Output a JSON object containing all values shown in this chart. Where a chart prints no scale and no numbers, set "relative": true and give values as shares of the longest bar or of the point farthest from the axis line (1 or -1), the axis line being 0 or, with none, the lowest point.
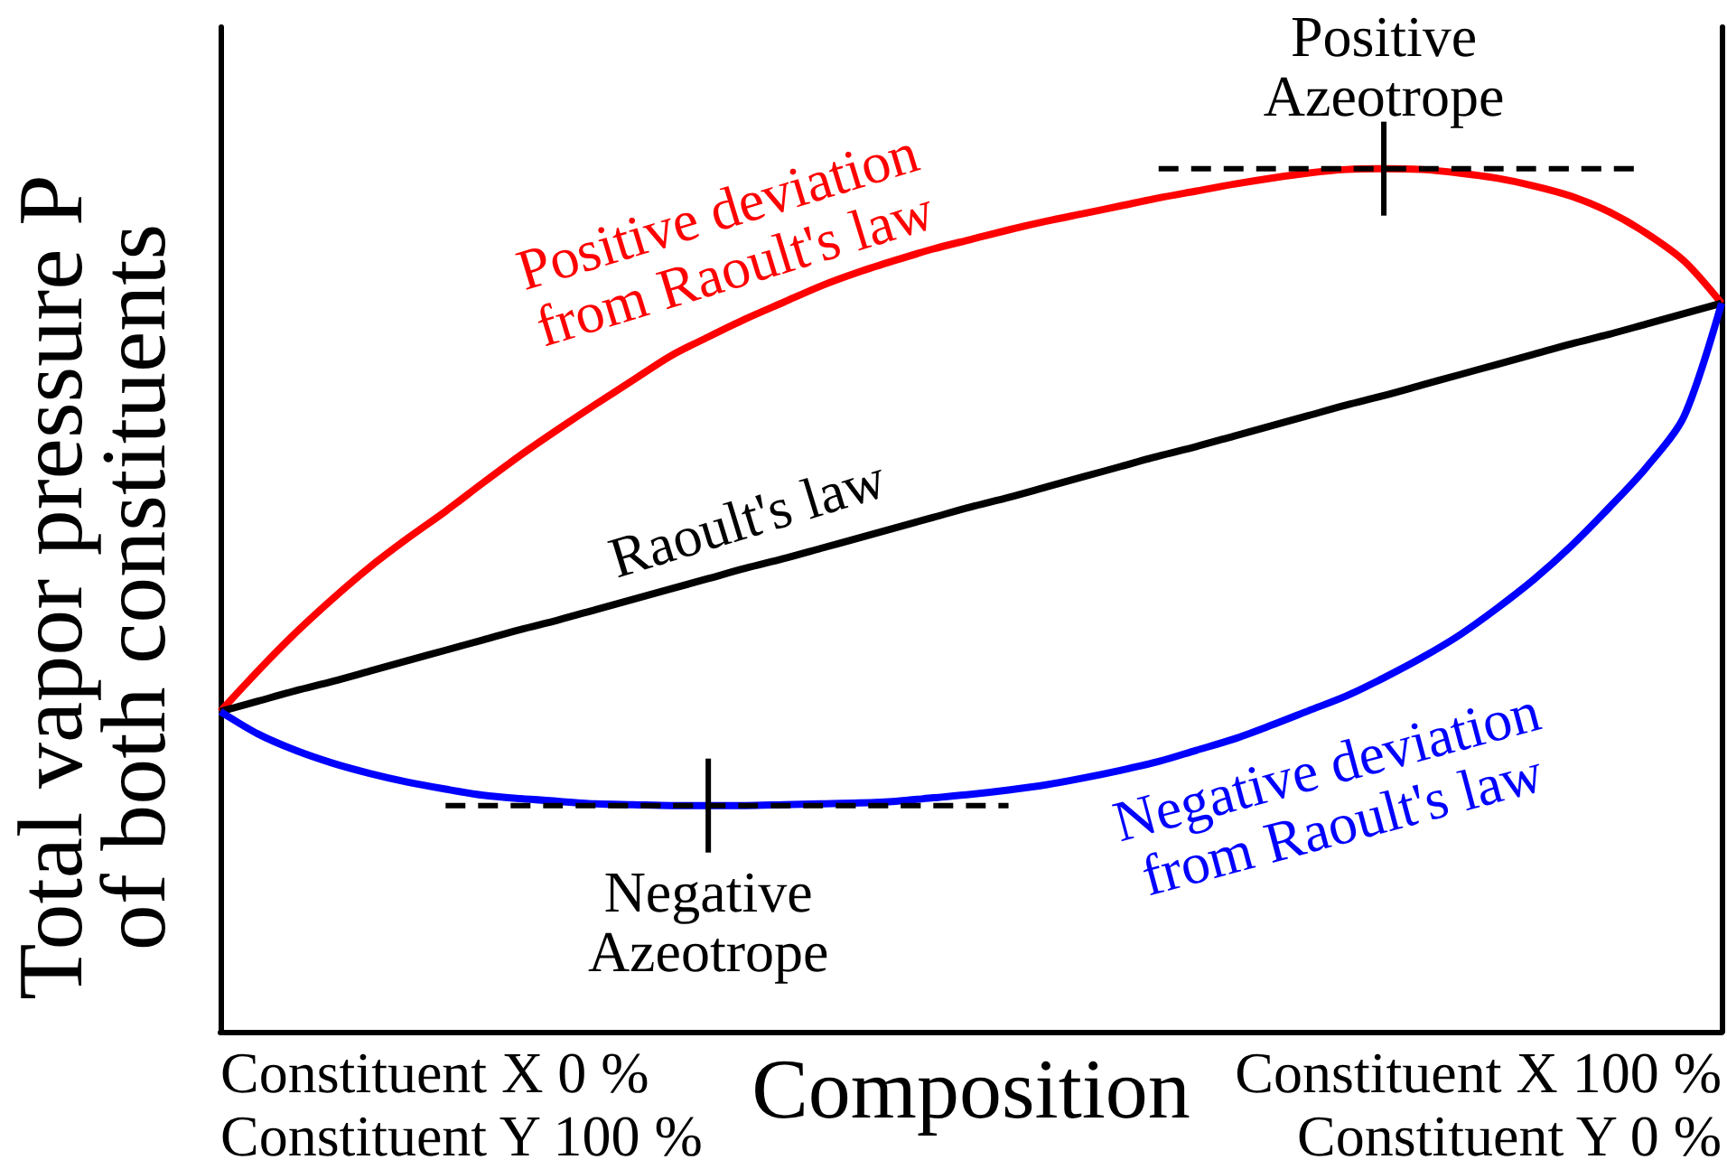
{
  "chart_data": {
    "type": "line",
    "relative": true,
    "xlabel": "Composition",
    "ylabel": "Total vapor pressure P\nof both constituents",
    "categories": [
      null,
      null,
      null,
      null,
      null,
      null,
      null,
      null,
      null,
      null,
      null,
      null,
      null,
      null,
      null,
      null,
      null,
      null,
      null,
      null,
      null,
      null,
      null,
      null,
      null,
      null,
      null,
      null,
      null,
      null,
      null,
      null,
      null,
      null,
      null,
      null,
      null,
      null,
      null,
      null,
      null
    ],
    "series": [
      {
        "name": "Positive deviation\nfrom Raoult's law",
        "color": "#ff0000",
        "values": [
          0.371,
          0.418,
          0.462,
          0.502,
          0.539,
          0.572,
          0.603,
          0.636,
          0.668,
          0.698,
          0.727,
          0.755,
          0.783,
          0.805,
          0.826,
          0.845,
          0.864,
          0.88,
          0.894,
          0.907,
          0.918,
          0.929,
          0.939,
          0.948,
          0.957,
          0.966,
          0.974,
          0.982,
          0.989,
          0.995,
          0.999,
          1,
          0.999,
          0.995,
          0.989,
          0.98,
          0.968,
          0.95,
          0.925,
          0.893,
          0.844
        ]
      },
      {
        "name": "Raoult's law",
        "color": "#000000",
        "values": [
          0.371,
          0.383,
          0.395,
          0.406,
          0.418,
          0.43,
          0.442,
          0.454,
          0.466,
          0.477,
          0.489,
          0.501,
          0.513,
          0.525,
          0.537,
          0.548,
          0.56,
          0.572,
          0.584,
          0.596,
          0.608,
          0.619,
          0.631,
          0.643,
          0.655,
          0.667,
          0.678,
          0.69,
          0.702,
          0.714,
          0.726,
          0.737,
          0.749,
          0.761,
          0.773,
          0.785,
          0.797,
          0.808,
          0.82,
          0.832,
          0.844
        ]
      },
      {
        "name": "Negative deviation\nfrom Raoult's law",
        "color": "#0000ff",
        "values": [
          0.371,
          0.345,
          0.326,
          0.311,
          0.299,
          0.289,
          0.281,
          0.274,
          0.27,
          0.267,
          0.264,
          0.263,
          0.262,
          0.262,
          0.262,
          0.263,
          0.264,
          0.265,
          0.267,
          0.271,
          0.275,
          0.28,
          0.286,
          0.294,
          0.303,
          0.313,
          0.326,
          0.339,
          0.355,
          0.372,
          0.389,
          0.41,
          0.433,
          0.459,
          0.49,
          0.524,
          0.563,
          0.607,
          0.654,
          0.713,
          0.844
        ]
      },
      {
        "color": "#000000",
        "line_style": "dashed",
        "values": [
          null,
          null,
          null,
          null,
          null,
          null,
          null,
          null,
          null,
          null,
          null,
          null,
          null,
          null,
          null,
          null,
          null,
          null,
          null,
          null,
          null,
          null,
          null,
          null,
          null,
          1,
          1,
          1,
          1,
          1,
          1,
          1,
          1,
          1,
          1,
          1,
          1,
          1,
          1,
          null,
          null
        ]
      },
      {
        "color": "#000000",
        "line_style": "dashed",
        "values": [
          null,
          null,
          null,
          null,
          null,
          null,
          0.262,
          0.262,
          0.262,
          0.262,
          0.262,
          0.262,
          0.262,
          0.262,
          0.262,
          0.262,
          0.262,
          0.262,
          0.262,
          0.262,
          0.262,
          0.262,
          null,
          null,
          null,
          null,
          null,
          null,
          null,
          null,
          null,
          null,
          null,
          null,
          null,
          null,
          null,
          null,
          null,
          null,
          null
        ]
      }
    ],
    "annotations": [
      "Constituent X 0 %\nConstituent Y 100 %",
      "Constituent X 100 %\nConstituent Y 0 %",
      {
        "text": "Positive\nAzeotrope",
        "y": 1
      },
      {
        "text": "Negative\nAzeotrope",
        "y": 0.262
      }
    ]
  }
}
